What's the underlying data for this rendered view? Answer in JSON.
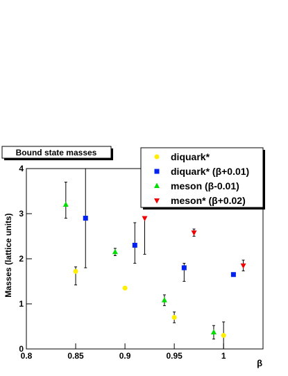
{
  "chart_data": {
    "type": "scatter",
    "title": "Bound state masses",
    "x_label": "β",
    "y_label": "Masses (lattice units)",
    "xlim": [
      0.8,
      1.04
    ],
    "ylim": [
      0,
      4
    ],
    "xticks": [
      0.8,
      0.85,
      0.9,
      0.95,
      1
    ],
    "yticks": [
      0,
      1,
      2,
      3,
      4
    ],
    "legend": "top-right",
    "series": [
      {
        "name": "diquark*",
        "color": "#ffee00",
        "marker": "circle",
        "x": [
          0.85,
          0.9,
          0.95,
          1.0
        ],
        "values": [
          1.72,
          1.35,
          0.7,
          0.3
        ],
        "err_minus": [
          0.3,
          0.03,
          0.12,
          0.3
        ],
        "err_plus": [
          0.1,
          0.03,
          0.12,
          0.3
        ]
      },
      {
        "name": "diquark* (β+0.01)",
        "color": "#0022ee",
        "marker": "square",
        "x": [
          0.86,
          0.91,
          0.96,
          1.01
        ],
        "values": [
          2.9,
          2.3,
          1.8,
          1.65
        ],
        "err_minus": [
          1.1,
          0.4,
          0.3,
          0.04
        ],
        "err_plus": [
          1.1,
          0.5,
          0.1,
          0.04
        ]
      },
      {
        "name": "meson (β-0.01)",
        "color": "#00dd00",
        "marker": "triangle",
        "x": [
          0.84,
          0.89,
          0.94,
          0.99
        ],
        "values": [
          3.2,
          2.15,
          1.08,
          0.37
        ],
        "err_minus": [
          0.3,
          0.08,
          0.12,
          0.15
        ],
        "err_plus": [
          0.5,
          0.08,
          0.12,
          0.15
        ]
      },
      {
        "name": "meson* (β+0.02)",
        "color": "#ee0000",
        "marker": "triangle-down",
        "x": [
          0.92,
          0.97,
          1.02
        ],
        "values": [
          2.9,
          2.58,
          1.85
        ],
        "err_minus": [
          0.8,
          0.08,
          0.12
        ],
        "err_plus": [
          0,
          0.08,
          0.12
        ]
      }
    ]
  }
}
